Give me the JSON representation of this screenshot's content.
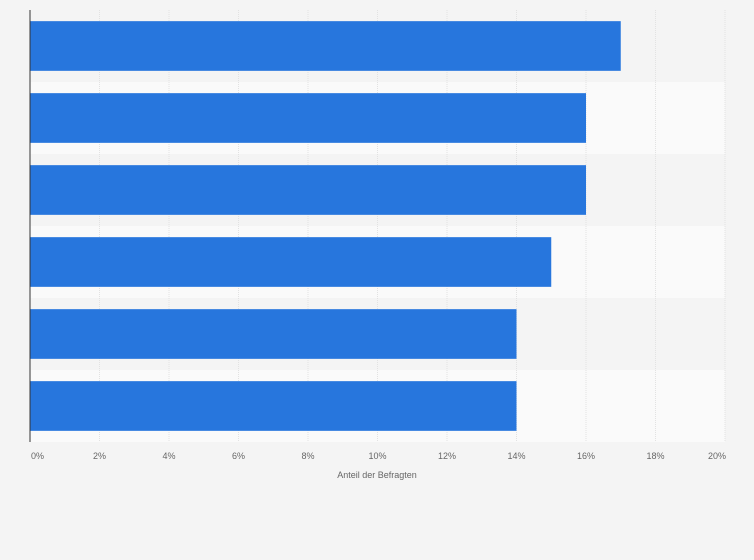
{
  "chart_data": {
    "type": "bar",
    "orientation": "horizontal",
    "categories": [
      "",
      "",
      "",
      "",
      "",
      ""
    ],
    "values": [
      17,
      16,
      16,
      15,
      14,
      14
    ],
    "xlabel": "Anteil der Befragten",
    "ylabel": "",
    "xlim": [
      0,
      20
    ],
    "tick_values": [
      0,
      2,
      4,
      6,
      8,
      10,
      12,
      14,
      16,
      18,
      20
    ],
    "tick_labels": [
      "0%",
      "2%",
      "4%",
      "6%",
      "8%",
      "10%",
      "12%",
      "14%",
      "16%",
      "18%",
      "20%"
    ],
    "grid": true,
    "legend": "none",
    "colors": {
      "bar": "#2776dd",
      "band_dark": "#f4f4f4",
      "band_light": "#fafafa",
      "gridline": "#e2e2e2",
      "axis": "#333333",
      "text": "#666666"
    }
  }
}
